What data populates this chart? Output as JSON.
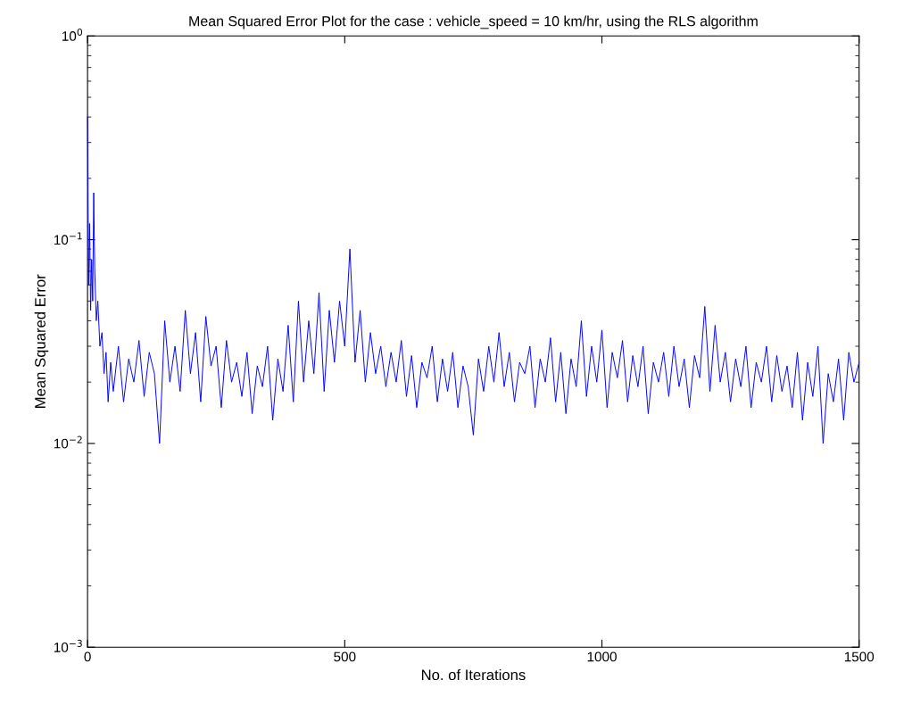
{
  "chart_data": {
    "type": "line",
    "title": "Mean Squared Error Plot for the case : vehicle_speed = 10 km/hr, using the RLS algorithm",
    "xlabel": "No. of Iterations",
    "ylabel": "Mean Squared Error",
    "log": "y",
    "grid": false,
    "marker": "none",
    "line_style": "solid",
    "xlim": [
      0,
      1500
    ],
    "xticks": [
      0,
      500,
      1000,
      1500
    ],
    "ylim": [
      0.001,
      1
    ],
    "yticks": [
      {
        "value": 0.001,
        "label": "10$^{−3}$"
      },
      {
        "value": 0.01,
        "label": "10$^{−2}$"
      },
      {
        "value": 0.1,
        "label": "10$^{−1}$"
      },
      {
        "value": 1,
        "label": "10$^{0}$"
      }
    ],
    "series": [
      {
        "color": "#0000ff",
        "x": [
          0,
          2,
          4,
          6,
          8,
          10,
          12,
          14,
          17,
          20,
          24,
          28,
          32,
          36,
          40,
          45,
          50,
          60,
          70,
          80,
          90,
          100,
          110,
          120,
          130,
          140,
          150,
          160,
          170,
          180,
          190,
          200,
          210,
          220,
          230,
          240,
          250,
          260,
          270,
          280,
          290,
          300,
          310,
          320,
          330,
          340,
          350,
          360,
          370,
          380,
          390,
          400,
          410,
          420,
          430,
          440,
          450,
          460,
          470,
          480,
          490,
          500,
          510,
          520,
          530,
          540,
          550,
          560,
          570,
          580,
          590,
          600,
          610,
          620,
          630,
          640,
          650,
          660,
          670,
          680,
          690,
          700,
          710,
          720,
          730,
          740,
          750,
          760,
          770,
          780,
          790,
          800,
          810,
          820,
          830,
          840,
          850,
          860,
          870,
          880,
          890,
          900,
          910,
          920,
          930,
          940,
          950,
          960,
          970,
          980,
          990,
          1000,
          1010,
          1020,
          1030,
          1040,
          1050,
          1060,
          1070,
          1080,
          1090,
          1100,
          1110,
          1120,
          1130,
          1140,
          1150,
          1160,
          1170,
          1180,
          1190,
          1200,
          1210,
          1220,
          1230,
          1240,
          1250,
          1260,
          1270,
          1280,
          1290,
          1300,
          1310,
          1320,
          1330,
          1340,
          1350,
          1360,
          1370,
          1380,
          1390,
          1400,
          1410,
          1420,
          1430,
          1440,
          1450,
          1460,
          1470,
          1480,
          1490,
          1500
        ],
        "values": [
          0.4,
          0.06,
          0.12,
          0.045,
          0.08,
          0.05,
          0.17,
          0.07,
          0.04,
          0.05,
          0.03,
          0.035,
          0.022,
          0.028,
          0.016,
          0.025,
          0.018,
          0.03,
          0.016,
          0.026,
          0.02,
          0.032,
          0.017,
          0.028,
          0.022,
          0.01,
          0.04,
          0.02,
          0.03,
          0.018,
          0.045,
          0.022,
          0.035,
          0.016,
          0.042,
          0.024,
          0.03,
          0.015,
          0.032,
          0.02,
          0.025,
          0.017,
          0.028,
          0.014,
          0.024,
          0.019,
          0.03,
          0.013,
          0.026,
          0.018,
          0.038,
          0.016,
          0.05,
          0.02,
          0.04,
          0.022,
          0.055,
          0.018,
          0.045,
          0.025,
          0.05,
          0.03,
          0.09,
          0.025,
          0.045,
          0.02,
          0.035,
          0.022,
          0.03,
          0.019,
          0.028,
          0.02,
          0.032,
          0.017,
          0.027,
          0.015,
          0.025,
          0.021,
          0.03,
          0.016,
          0.026,
          0.018,
          0.028,
          0.015,
          0.024,
          0.019,
          0.011,
          0.026,
          0.018,
          0.03,
          0.02,
          0.035,
          0.019,
          0.028,
          0.016,
          0.025,
          0.022,
          0.03,
          0.015,
          0.026,
          0.02,
          0.033,
          0.016,
          0.028,
          0.014,
          0.026,
          0.019,
          0.04,
          0.017,
          0.03,
          0.02,
          0.036,
          0.015,
          0.028,
          0.021,
          0.032,
          0.016,
          0.027,
          0.019,
          0.03,
          0.014,
          0.025,
          0.02,
          0.028,
          0.017,
          0.03,
          0.019,
          0.026,
          0.015,
          0.027,
          0.021,
          0.047,
          0.018,
          0.038,
          0.02,
          0.028,
          0.016,
          0.026,
          0.019,
          0.03,
          0.015,
          0.025,
          0.02,
          0.03,
          0.016,
          0.027,
          0.018,
          0.024,
          0.015,
          0.028,
          0.013,
          0.025,
          0.017,
          0.03,
          0.01,
          0.022,
          0.016,
          0.026,
          0.013,
          0.028,
          0.02,
          0.025
        ]
      }
    ]
  }
}
